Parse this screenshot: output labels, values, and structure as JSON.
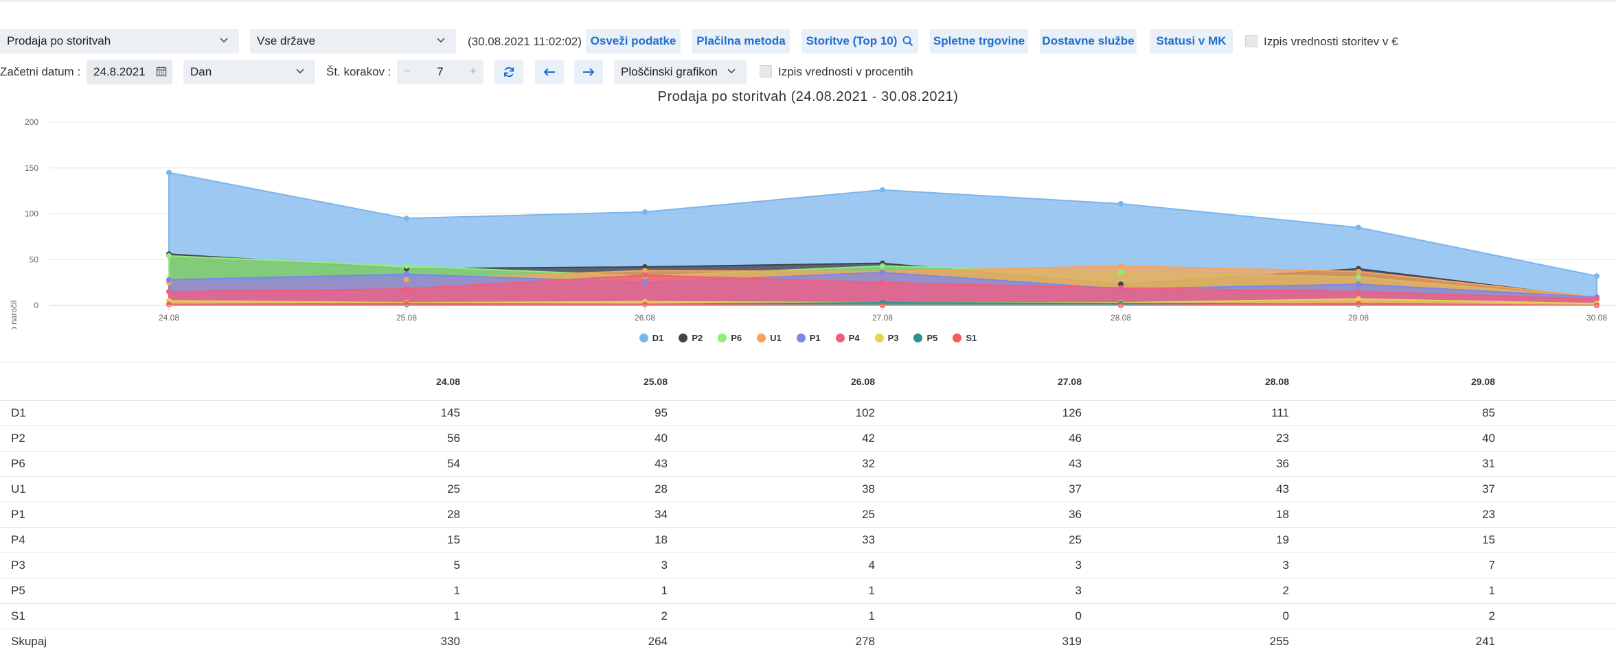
{
  "toolbar": {
    "report_select": "Prodaja po storitvah",
    "country_select": "Vse države",
    "timestamp": "(30.08.2021 11:02:02)",
    "refresh_label": "Osveži podatke",
    "payment_label": "Plačilna metoda",
    "services_label": "Storitve (Top 10)",
    "shops_label": "Spletne trgovine",
    "delivery_label": "Dostavne službe",
    "status_label": "Statusi v MK",
    "euro_checkbox_label": "Izpis vrednosti storitev v €"
  },
  "filters": {
    "start_label": "Začetni datum :",
    "start_value": "24.8.2021",
    "period_select": "Dan",
    "steps_label": "Št. korakov :",
    "steps_minus": "−",
    "steps_value": "7",
    "steps_plus": "+",
    "chart_type_select": "Ploščinski grafikon",
    "percent_checkbox_label": "Izpis vrednosti v procentih"
  },
  "chart_data": {
    "type": "area",
    "title": "Prodaja po storitvah (24.08.2021 - 30.08.2021)",
    "ylabel": "Število naročil",
    "xlabel": "",
    "ylim": [
      0,
      200
    ],
    "yticks": [
      "0",
      "50",
      "100",
      "150",
      "200"
    ],
    "categories": [
      "24.08",
      "25.08",
      "26.08",
      "27.08",
      "28.08",
      "29.08",
      "30.08"
    ],
    "series": [
      {
        "name": "D1",
        "color": "#7cb5ec",
        "values": [
          145,
          95,
          102,
          126,
          111,
          85,
          32
        ]
      },
      {
        "name": "P2",
        "color": "#434348",
        "values": [
          56,
          40,
          42,
          46,
          23,
          40,
          8
        ]
      },
      {
        "name": "P6",
        "color": "#90ed7d",
        "values": [
          54,
          43,
          32,
          43,
          36,
          31,
          8
        ]
      },
      {
        "name": "U1",
        "color": "#f7a35c",
        "values": [
          25,
          28,
          38,
          37,
          43,
          37,
          9
        ]
      },
      {
        "name": "P1",
        "color": "#8085e9",
        "values": [
          28,
          34,
          25,
          36,
          18,
          23,
          9
        ]
      },
      {
        "name": "P4",
        "color": "#f15c80",
        "values": [
          15,
          18,
          33,
          25,
          19,
          15,
          7
        ]
      },
      {
        "name": "P3",
        "color": "#e4d354",
        "values": [
          5,
          3,
          4,
          3,
          3,
          7,
          2
        ]
      },
      {
        "name": "P5",
        "color": "#2b908f",
        "values": [
          1,
          1,
          1,
          3,
          2,
          1,
          0
        ]
      },
      {
        "name": "S1",
        "color": "#f45b5b",
        "values": [
          1,
          2,
          1,
          0,
          0,
          2,
          0
        ]
      }
    ]
  },
  "table": {
    "columns": [
      "24.08",
      "25.08",
      "26.08",
      "27.08",
      "28.08",
      "29.08"
    ],
    "rows": [
      {
        "label": "D1",
        "values": [
          "145",
          "95",
          "102",
          "126",
          "111",
          "85"
        ]
      },
      {
        "label": "P2",
        "values": [
          "56",
          "40",
          "42",
          "46",
          "23",
          "40"
        ]
      },
      {
        "label": "P6",
        "values": [
          "54",
          "43",
          "32",
          "43",
          "36",
          "31"
        ]
      },
      {
        "label": "U1",
        "values": [
          "25",
          "28",
          "38",
          "37",
          "43",
          "37"
        ]
      },
      {
        "label": "P1",
        "values": [
          "28",
          "34",
          "25",
          "36",
          "18",
          "23"
        ]
      },
      {
        "label": "P4",
        "values": [
          "15",
          "18",
          "33",
          "25",
          "19",
          "15"
        ]
      },
      {
        "label": "P3",
        "values": [
          "5",
          "3",
          "4",
          "3",
          "3",
          "7"
        ]
      },
      {
        "label": "P5",
        "values": [
          "1",
          "1",
          "1",
          "3",
          "2",
          "1"
        ]
      },
      {
        "label": "S1",
        "values": [
          "1",
          "2",
          "1",
          "0",
          "0",
          "2"
        ]
      },
      {
        "label": "Skupaj",
        "values": [
          "330",
          "264",
          "278",
          "319",
          "255",
          "241"
        ]
      }
    ]
  }
}
